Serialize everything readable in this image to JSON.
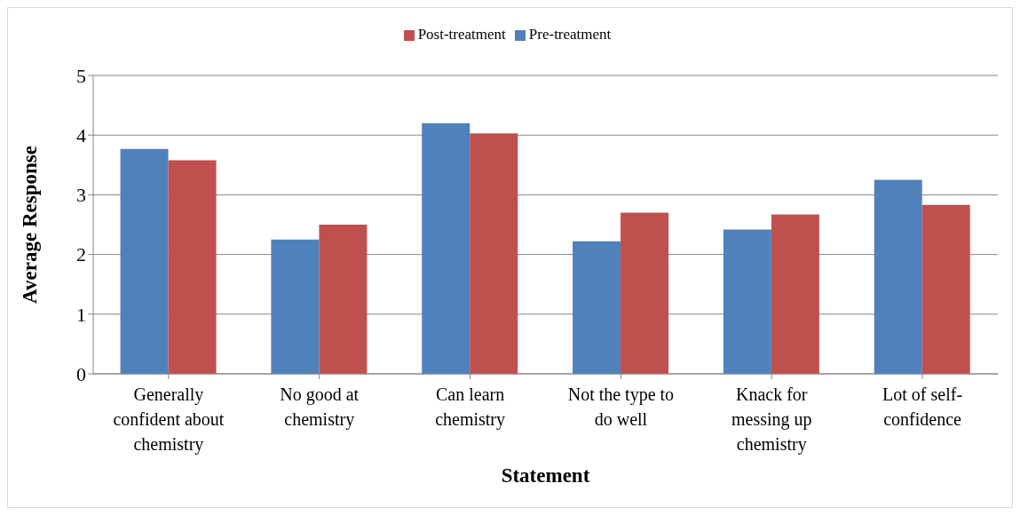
{
  "chart_data": {
    "type": "bar",
    "xlabel": "Statement",
    "ylabel": "Average Response",
    "categories": [
      "Generally confident about chemistry",
      "No good at chemistry",
      "Can learn chemistry",
      "Not the type to do well",
      "Knack for messing up chemistry",
      "Lot of self-confidence"
    ],
    "series": [
      {
        "name": "Pre-treatment",
        "color": "#4f81bd",
        "values": [
          3.77,
          2.25,
          4.2,
          2.22,
          2.42,
          3.25
        ]
      },
      {
        "name": "Post-treatment",
        "color": "#c0504d",
        "values": [
          3.58,
          2.5,
          4.03,
          2.7,
          2.67,
          2.83
        ]
      }
    ],
    "ylim": [
      0,
      5
    ],
    "yticks": [
      0,
      1,
      2,
      3,
      4,
      5
    ],
    "grid": "y",
    "legend": "top"
  }
}
